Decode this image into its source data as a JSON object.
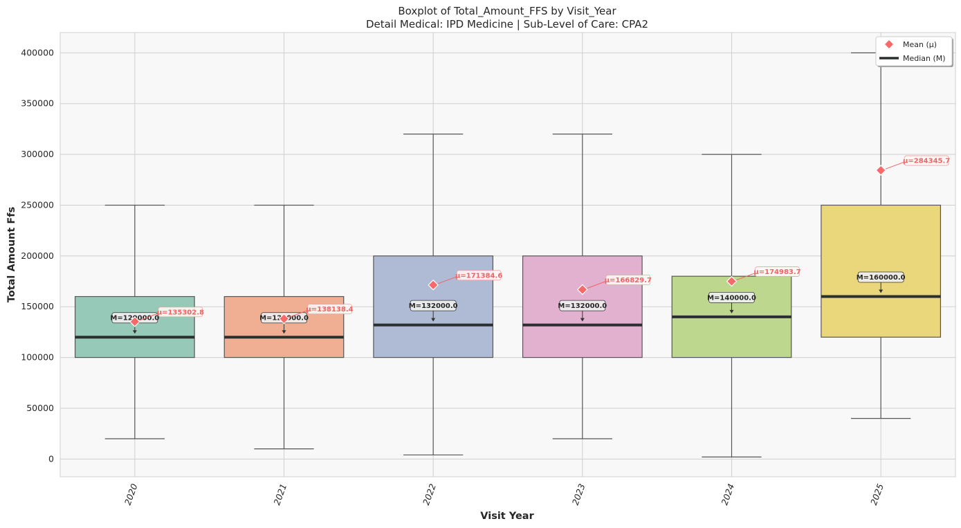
{
  "chart_data": {
    "type": "box",
    "title": "Boxplot of Total_Amount_FFS by Visit_Year",
    "subtitle": "Detail Medical: IPD Medicine | Sub-Level of Care: CPA2",
    "xlabel": "Visit Year",
    "ylabel": "Total Amount Ffs",
    "ylim": [
      -17500,
      420000
    ],
    "yticks": [
      0,
      50000,
      100000,
      150000,
      200000,
      250000,
      300000,
      350000,
      400000
    ],
    "yticks_text": [
      "0",
      "50000",
      "100000",
      "150000",
      "200000",
      "250000",
      "300000",
      "350000",
      "400000"
    ],
    "grid": true,
    "legend_position": "top-right",
    "legend": [
      {
        "label": "Mean (μ)",
        "marker": "diamond",
        "color": "#f86a6a"
      },
      {
        "label": "Median (M)",
        "marker": "line",
        "color": "#2b2f2f"
      }
    ],
    "categories": [
      "2020",
      "2021",
      "2022",
      "2023",
      "2024",
      "2025"
    ],
    "boxes": [
      {
        "x": "2020",
        "whisker_low": 20000,
        "q1": 100000,
        "median": 120000,
        "q3": 160000,
        "whisker_high": 250000,
        "mean": 135302.8,
        "color": "#96c9b8",
        "median_label": "M=120000.0",
        "mean_label": "μ=135302.8"
      },
      {
        "x": "2021",
        "whisker_low": 10000,
        "q1": 100000,
        "median": 120000,
        "q3": 160000,
        "whisker_high": 250000,
        "mean": 138138.4,
        "color": "#f0ae93",
        "median_label": "M=120000.0",
        "mean_label": "μ=138138.4"
      },
      {
        "x": "2022",
        "whisker_low": 4000,
        "q1": 100000,
        "median": 132000,
        "q3": 200000,
        "whisker_high": 320000,
        "mean": 171384.6,
        "color": "#afbbd5",
        "median_label": "M=132000.0",
        "mean_label": "μ=171384.6"
      },
      {
        "x": "2023",
        "whisker_low": 20000,
        "q1": 100000,
        "median": 132000,
        "q3": 200000,
        "whisker_high": 320000,
        "mean": 166829.7,
        "color": "#e3b1d0",
        "median_label": "M=132000.0",
        "mean_label": "μ=166829.7"
      },
      {
        "x": "2024",
        "whisker_low": 2000,
        "q1": 100000,
        "median": 140000,
        "q3": 180000,
        "whisker_high": 300000,
        "mean": 174983.7,
        "color": "#bdd88e",
        "median_label": "M=140000.0",
        "mean_label": "μ=174983.7"
      },
      {
        "x": "2025",
        "whisker_low": 40000,
        "q1": 120000,
        "median": 160000,
        "q3": 250000,
        "whisker_high": 400000,
        "mean": 284345.7,
        "color": "#ebd77b",
        "median_label": "M=160000.0",
        "mean_label": "μ=284345.7"
      }
    ]
  }
}
